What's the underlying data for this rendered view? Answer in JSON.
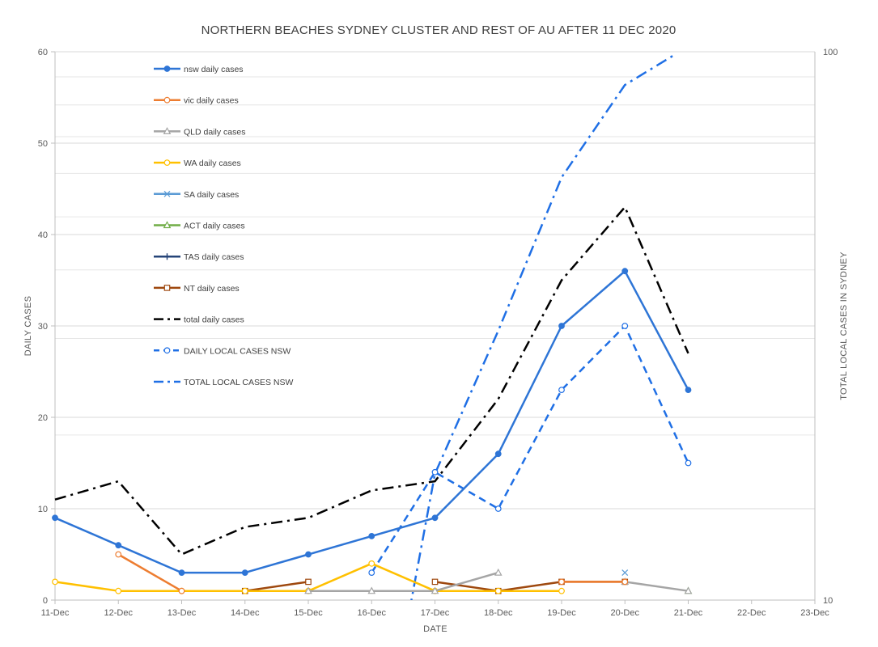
{
  "chart_data": {
    "type": "line",
    "title": "NORTHERN BEACHES SYDNEY CLUSTER AND REST OF AU AFTER 11 DEC 2020",
    "xlabel": "DATE",
    "ylabel": "DAILY CASES",
    "y2label": "TOTAL LOCAL CASES IN SYDNEY",
    "categories": [
      "11-Dec",
      "12-Dec",
      "13-Dec",
      "14-Dec",
      "15-Dec",
      "16-Dec",
      "17-Dec",
      "18-Dec",
      "19-Dec",
      "20-Dec",
      "21-Dec",
      "22-Dec",
      "23-Dec"
    ],
    "ylim": [
      0,
      60
    ],
    "yticks": [
      "0",
      "10",
      "20",
      "30",
      "40",
      "50",
      "60"
    ],
    "y2ticks": [
      "10",
      "100"
    ],
    "y2scale": "log",
    "y2lim": [
      10,
      100
    ],
    "legend_position": "left, inside plot",
    "grid": true,
    "series": [
      {
        "name": "nsw daily cases",
        "color": "#2E75D6",
        "style": "solid",
        "marker": "filled-circle",
        "axis": "left",
        "width": 2.5,
        "values": [
          9,
          6,
          3,
          3,
          5,
          7,
          9,
          16,
          30,
          36,
          23,
          null,
          null
        ]
      },
      {
        "name": "vic daily cases",
        "color": "#ED7D31",
        "style": "solid",
        "marker": "open-circle",
        "axis": "left",
        "width": 2.5,
        "values": [
          null,
          5,
          1,
          null,
          null,
          null,
          null,
          null,
          2,
          2,
          null,
          null,
          null
        ]
      },
      {
        "name": "QLD daily cases",
        "color": "#A5A5A5",
        "style": "solid",
        "marker": "open-triangle",
        "axis": "left",
        "width": 2.5,
        "values": [
          null,
          null,
          null,
          null,
          1,
          1,
          1,
          3,
          null,
          2,
          1,
          null,
          null
        ]
      },
      {
        "name": "WA  daily cases",
        "color": "#FFC000",
        "style": "solid",
        "marker": "open-circle",
        "axis": "left",
        "width": 2.5,
        "values": [
          2,
          1,
          1,
          1,
          1,
          4,
          1,
          1,
          1,
          null,
          null,
          null,
          null
        ]
      },
      {
        "name": "SA  daily cases",
        "color": "#5B9BD5",
        "style": "solid",
        "marker": "x",
        "axis": "left",
        "width": 2.5,
        "values": [
          null,
          null,
          null,
          null,
          null,
          null,
          null,
          null,
          null,
          3,
          null,
          null,
          null
        ]
      },
      {
        "name": "ACT daily cases",
        "color": "#70AD47",
        "style": "solid",
        "marker": "open-triangle",
        "axis": "left",
        "width": 2.5,
        "values": [
          null,
          null,
          null,
          null,
          null,
          null,
          null,
          null,
          null,
          null,
          1,
          null,
          null
        ]
      },
      {
        "name": "TAS daily cases",
        "color": "#264478",
        "style": "solid",
        "marker": "plus",
        "axis": "left",
        "width": 2.5,
        "values": [
          null,
          null,
          null,
          null,
          null,
          null,
          null,
          null,
          null,
          null,
          null,
          null,
          null
        ]
      },
      {
        "name": "NT daily cases",
        "color": "#9E480E",
        "style": "solid",
        "marker": "open-square",
        "axis": "left",
        "width": 2.5,
        "values": [
          null,
          null,
          null,
          1,
          2,
          null,
          2,
          1,
          2,
          2,
          null,
          null,
          null
        ]
      },
      {
        "name": "total daily cases",
        "color": "#000000",
        "style": "dashdot",
        "marker": "none",
        "axis": "left",
        "width": 2.5,
        "values": [
          11,
          13,
          5,
          8,
          9,
          12,
          13,
          22,
          35,
          43,
          27,
          null,
          null
        ]
      },
      {
        "name": "DAILY LOCAL CASES NSW",
        "color": "#1F6FE5",
        "style": "dash",
        "marker": "open-circle",
        "axis": "left",
        "width": 2.5,
        "values": [
          null,
          null,
          null,
          null,
          null,
          3,
          14,
          10,
          23,
          30,
          15,
          null,
          null
        ]
      },
      {
        "name": "TOTAL LOCAL CASES  NSW",
        "color": "#1F6FE5",
        "style": "dashdot",
        "marker": "none",
        "axis": "right",
        "width": 2.5,
        "values": [
          null,
          null,
          null,
          null,
          null,
          null,
          null,
          null,
          null,
          null,
          null,
          null,
          null
        ],
        "xy": [
          [
            5.6,
            9.6
          ],
          [
            6.0,
            17
          ],
          [
            7.0,
            31
          ],
          [
            8.0,
            59
          ],
          [
            9.0,
            87
          ],
          [
            9.8,
            99
          ]
        ]
      }
    ]
  }
}
